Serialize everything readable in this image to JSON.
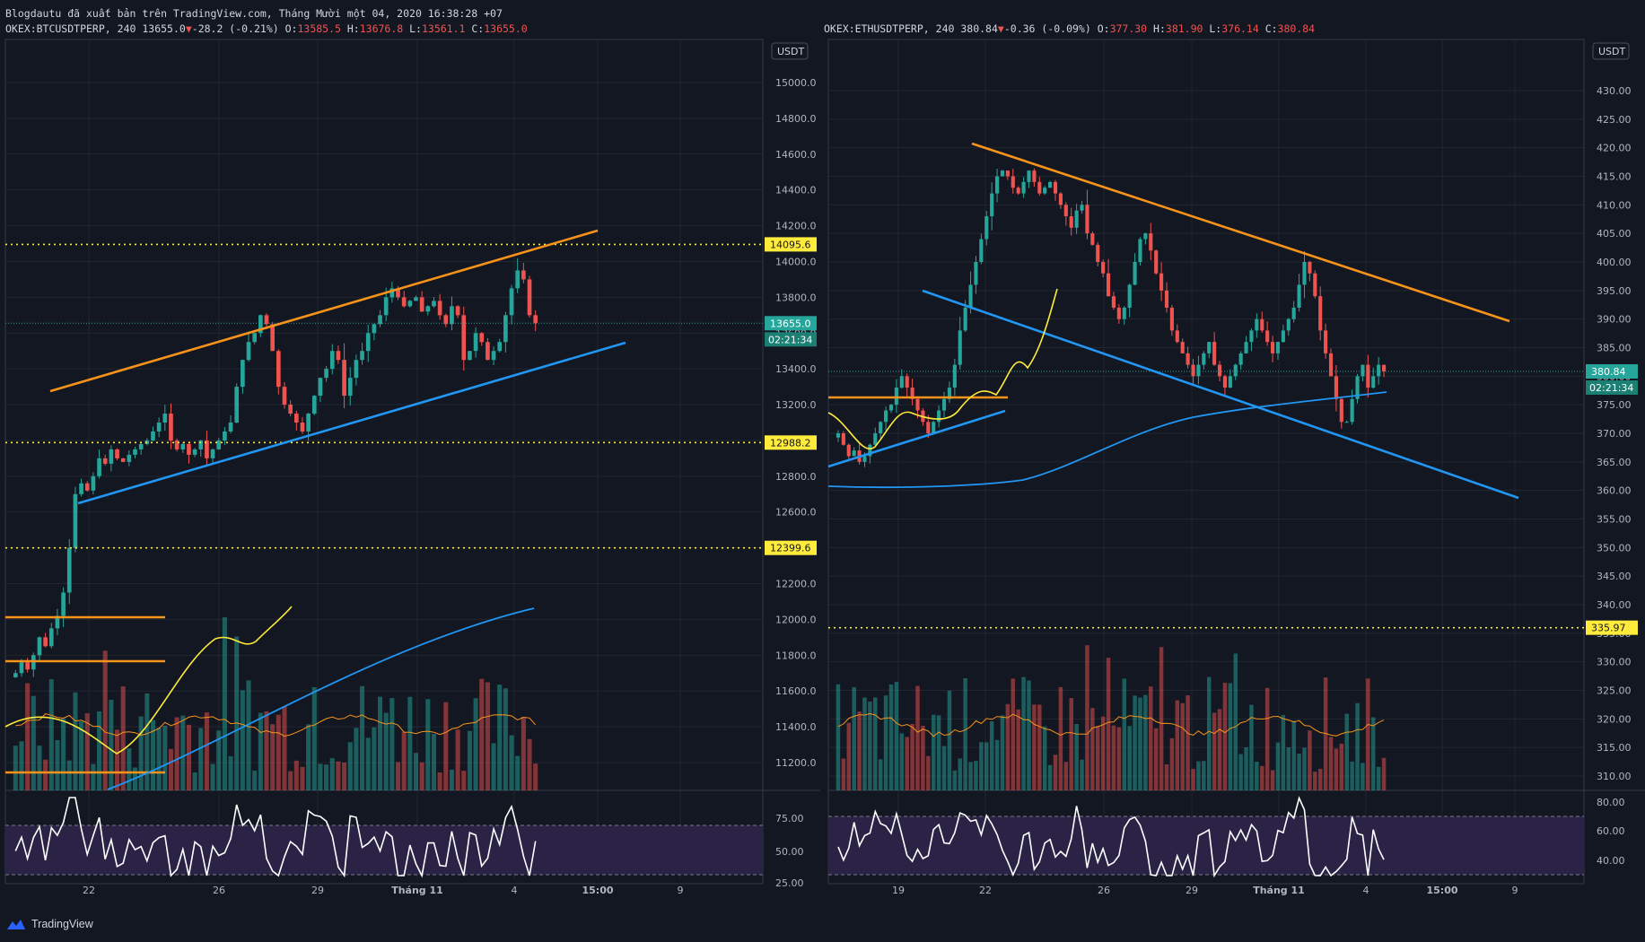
{
  "header": {
    "publish_line": "Blogdautu đã xuất bản trên TradingView.com, Tháng Mười một 04, 2020 16:38:28 +07"
  },
  "footer": {
    "brand": "TradingView"
  },
  "colors": {
    "background": "#131722",
    "up": "#26a69a",
    "down": "#ef5350",
    "trend_orange": "#f7931a",
    "trend_blue": "#2196f3",
    "level_yellow": "#ffeb3b",
    "rsi_line": "#ffffff",
    "rsi_band": "#2a2346"
  },
  "charts": [
    {
      "symbol": "OKEX:BTCUSDTPERP",
      "interval": "240",
      "last": "13655.0",
      "change": "-28.2 (-0.21%)",
      "open": "13585.5",
      "high": "13676.8",
      "low": "13561.1",
      "close": "13655.0",
      "currency": "USDT",
      "price_ticks": [
        "15000.0",
        "14800.0",
        "14600.0",
        "14400.0",
        "14200.0",
        "14000.0",
        "13800.0",
        "13600.0",
        "13400.0",
        "13200.0",
        "13000.0",
        "12800.0",
        "12600.0",
        "12400.0",
        "12200.0",
        "12000.0",
        "11800.0",
        "11600.0",
        "11400.0",
        "11200.0"
      ],
      "price_label": "13655.0",
      "countdown": "02:21:34",
      "levels": [
        "14095.6",
        "12988.2",
        "12399.6"
      ],
      "rsi_ticks": [
        "75.00",
        "50.00",
        "25.00"
      ],
      "time_ticks": [
        "22",
        "26",
        "29",
        "Tháng 11",
        "4",
        "15:00",
        "9"
      ]
    },
    {
      "symbol": "OKEX:ETHUSDTPERP",
      "interval": "240",
      "last": "380.84",
      "change": "-0.36 (-0.09%)",
      "open": "377.30",
      "high": "381.90",
      "low": "376.14",
      "close": "380.84",
      "currency": "USDT",
      "price_ticks": [
        "430.00",
        "425.00",
        "420.00",
        "415.00",
        "410.00",
        "405.00",
        "400.00",
        "395.00",
        "390.00",
        "385.00",
        "380.00",
        "375.00",
        "370.00",
        "365.00",
        "360.00",
        "355.00",
        "350.00",
        "345.00",
        "340.00",
        "335.00",
        "330.00",
        "325.00",
        "320.00",
        "315.00",
        "310.00"
      ],
      "price_label": "380.84",
      "countdown": "02:21:34",
      "levels": [
        "335.97"
      ],
      "rsi_ticks": [
        "80.00",
        "60.00",
        "40.00"
      ],
      "time_ticks": [
        "19",
        "22",
        "26",
        "29",
        "Tháng 11",
        "4",
        "15:00",
        "9"
      ]
    }
  ],
  "chart_data": [
    {
      "type": "candlestick",
      "title": "OKEX:BTCUSDTPERP, 240",
      "ylabel": "USDT",
      "ylim": [
        11050,
        15100
      ],
      "x_ticks": [
        "22",
        "26",
        "29",
        "Tháng 11",
        "4",
        "15:00",
        "9"
      ],
      "horizontal_levels": [
        14095.6,
        12988.2,
        12399.6
      ],
      "last_price": 13655.0,
      "close_path": [
        11700,
        11760,
        11720,
        11800,
        11900,
        11850,
        11950,
        12020,
        12150,
        12400,
        12700,
        12760,
        12720,
        12800,
        12900,
        12870,
        12950,
        12900,
        12880,
        12920,
        12950,
        12980,
        13000,
        13050,
        13100,
        13150,
        13000,
        12950,
        12980,
        12920,
        12950,
        13000,
        12900,
        12950,
        13000,
        13050,
        13100,
        13300,
        13450,
        13550,
        13600,
        13700,
        13650,
        13500,
        13300,
        13200,
        13150,
        13100,
        13050,
        13150,
        13250,
        13350,
        13400,
        13500,
        13450,
        13250,
        13350,
        13450,
        13500,
        13600,
        13650,
        13700,
        13800,
        13850,
        13800,
        13750,
        13780,
        13800,
        13720,
        13750,
        13780,
        13700,
        13650,
        13750,
        13700,
        13450,
        13500,
        13600,
        13550,
        13450,
        13500,
        13550,
        13700,
        13850,
        13950,
        13900,
        13700,
        13655
      ],
      "rsi_ticks": [
        75,
        50,
        25
      ]
    },
    {
      "type": "candlestick",
      "title": "OKEX:ETHUSDTPERP, 240",
      "ylabel": "USDT",
      "ylim": [
        306,
        436
      ],
      "x_ticks": [
        "19",
        "22",
        "26",
        "29",
        "Tháng 11",
        "4",
        "15:00",
        "9"
      ],
      "horizontal_levels": [
        335.97
      ],
      "last_price": 380.84,
      "close_path": [
        370,
        368,
        366,
        367,
        365,
        366,
        368,
        370,
        372,
        374,
        375,
        378,
        380,
        378,
        376,
        374,
        372,
        370,
        372,
        374,
        376,
        378,
        382,
        388,
        392,
        396,
        400,
        404,
        408,
        412,
        415,
        416,
        415,
        413,
        412,
        414,
        416,
        414,
        412,
        413,
        414,
        412,
        410,
        408,
        406,
        409,
        410,
        405,
        403,
        400,
        398,
        394,
        392,
        390,
        392,
        396,
        400,
        404,
        405,
        402,
        398,
        395,
        392,
        388,
        386,
        384,
        382,
        380,
        382,
        384,
        386,
        382,
        380,
        378,
        380,
        382,
        384,
        386,
        388,
        390,
        388,
        386,
        384,
        386,
        388,
        390,
        392,
        396,
        400,
        398,
        394,
        388,
        384,
        380,
        376,
        372,
        372,
        376,
        380,
        382,
        378,
        380,
        382,
        380.84
      ],
      "rsi_ticks": [
        80,
        60,
        40
      ]
    }
  ]
}
